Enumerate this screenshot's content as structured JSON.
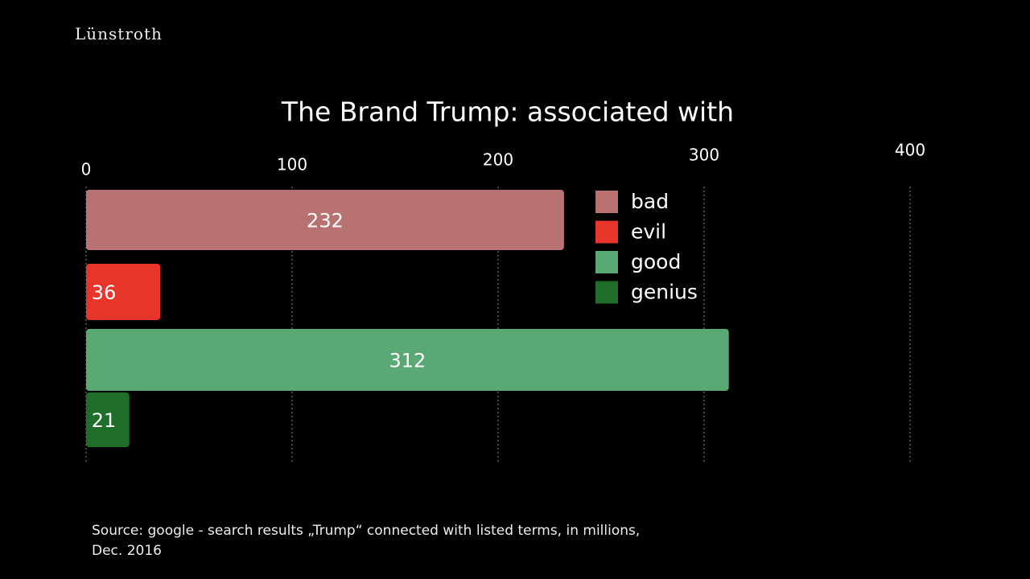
{
  "brand": "Lünstroth",
  "chart_data": {
    "type": "bar",
    "orientation": "horizontal",
    "title": "The Brand Trump: associated with",
    "categories": [
      "bad",
      "evil",
      "good",
      "genius"
    ],
    "values": [
      232,
      36,
      312,
      21
    ],
    "colors": [
      "#b87272",
      "#e8352b",
      "#5aa974",
      "#1f6e2a"
    ],
    "xlim": [
      0,
      400
    ],
    "xticks": [
      0,
      100,
      200,
      300,
      400
    ],
    "grid": true,
    "legend": "top-right"
  },
  "source": "Source: google - search results „Trump“ connected with listed terms, in millions, Dec. 2016"
}
